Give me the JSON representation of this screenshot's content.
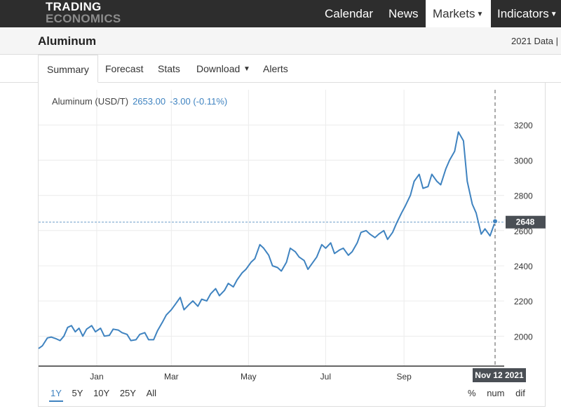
{
  "brand": {
    "line1": "TRADING",
    "line2": "ECONOMICS"
  },
  "nav": {
    "calendar": "Calendar",
    "news": "News",
    "markets": "Markets",
    "indicators": "Indicators"
  },
  "header": {
    "title": "Aluminum",
    "data_link": "2021 Data |"
  },
  "tabs": {
    "summary": "Summary",
    "forecast": "Forecast",
    "stats": "Stats",
    "download": "Download",
    "alerts": "Alerts"
  },
  "quote": {
    "name": "Aluminum (USD/T)",
    "price": "2653.00",
    "change": "-3.00 (-0.11%)"
  },
  "ranges": {
    "r1": "1Y",
    "r2": "5Y",
    "r3": "10Y",
    "r4": "25Y",
    "r5": "All"
  },
  "modes": {
    "pct": "%",
    "num": "num",
    "dif": "dif"
  },
  "colors": {
    "line": "#3f83c0",
    "nav_bg": "#2d2d2d",
    "tooltip_bg": "#4a4f55"
  },
  "chart_data": {
    "type": "line",
    "title": "",
    "series": [
      {
        "name": "Aluminum (USD/T)",
        "points": [
          [
            "2020-11-16",
            1930
          ],
          [
            "2020-11-19",
            1945
          ],
          [
            "2020-11-23",
            1990
          ],
          [
            "2020-11-26",
            1995
          ],
          [
            "2020-11-30",
            1985
          ],
          [
            "2020-12-03",
            1975
          ],
          [
            "2020-12-06",
            2000
          ],
          [
            "2020-12-09",
            2050
          ],
          [
            "2020-12-12",
            2060
          ],
          [
            "2020-12-15",
            2025
          ],
          [
            "2020-12-18",
            2045
          ],
          [
            "2020-12-21",
            2000
          ],
          [
            "2020-12-24",
            2040
          ],
          [
            "2020-12-28",
            2060
          ],
          [
            "2020-12-31",
            2025
          ],
          [
            "2021-01-04",
            2045
          ],
          [
            "2021-01-07",
            2000
          ],
          [
            "2021-01-11",
            2005
          ],
          [
            "2021-01-14",
            2040
          ],
          [
            "2021-01-18",
            2035
          ],
          [
            "2021-01-21",
            2020
          ],
          [
            "2021-01-25",
            2010
          ],
          [
            "2021-01-28",
            1975
          ],
          [
            "2021-02-01",
            1980
          ],
          [
            "2021-02-04",
            2010
          ],
          [
            "2021-02-08",
            2020
          ],
          [
            "2021-02-11",
            1980
          ],
          [
            "2021-02-15",
            1980
          ],
          [
            "2021-02-18",
            2030
          ],
          [
            "2021-02-22",
            2080
          ],
          [
            "2021-02-25",
            2120
          ],
          [
            "2021-03-01",
            2150
          ],
          [
            "2021-03-04",
            2180
          ],
          [
            "2021-03-08",
            2220
          ],
          [
            "2021-03-11",
            2150
          ],
          [
            "2021-03-15",
            2180
          ],
          [
            "2021-03-18",
            2200
          ],
          [
            "2021-03-22",
            2170
          ],
          [
            "2021-03-25",
            2210
          ],
          [
            "2021-03-29",
            2200
          ],
          [
            "2021-04-01",
            2240
          ],
          [
            "2021-04-05",
            2270
          ],
          [
            "2021-04-08",
            2230
          ],
          [
            "2021-04-12",
            2260
          ],
          [
            "2021-04-15",
            2300
          ],
          [
            "2021-04-19",
            2280
          ],
          [
            "2021-04-22",
            2320
          ],
          [
            "2021-04-26",
            2360
          ],
          [
            "2021-04-29",
            2380
          ],
          [
            "2021-05-03",
            2420
          ],
          [
            "2021-05-06",
            2440
          ],
          [
            "2021-05-10",
            2520
          ],
          [
            "2021-05-13",
            2500
          ],
          [
            "2021-05-17",
            2460
          ],
          [
            "2021-05-20",
            2400
          ],
          [
            "2021-05-24",
            2390
          ],
          [
            "2021-05-27",
            2370
          ],
          [
            "2021-05-31",
            2420
          ],
          [
            "2021-06-03",
            2500
          ],
          [
            "2021-06-07",
            2480
          ],
          [
            "2021-06-10",
            2450
          ],
          [
            "2021-06-14",
            2430
          ],
          [
            "2021-06-17",
            2380
          ],
          [
            "2021-06-21",
            2420
          ],
          [
            "2021-06-24",
            2450
          ],
          [
            "2021-06-28",
            2520
          ],
          [
            "2021-07-01",
            2500
          ],
          [
            "2021-07-05",
            2530
          ],
          [
            "2021-07-08",
            2470
          ],
          [
            "2021-07-12",
            2490
          ],
          [
            "2021-07-15",
            2500
          ],
          [
            "2021-07-19",
            2460
          ],
          [
            "2021-07-22",
            2480
          ],
          [
            "2021-07-26",
            2530
          ],
          [
            "2021-07-29",
            2590
          ],
          [
            "2021-08-02",
            2600
          ],
          [
            "2021-08-05",
            2580
          ],
          [
            "2021-08-09",
            2560
          ],
          [
            "2021-08-12",
            2580
          ],
          [
            "2021-08-16",
            2600
          ],
          [
            "2021-08-19",
            2550
          ],
          [
            "2021-08-23",
            2590
          ],
          [
            "2021-08-26",
            2640
          ],
          [
            "2021-08-30",
            2700
          ],
          [
            "2021-09-02",
            2740
          ],
          [
            "2021-09-06",
            2800
          ],
          [
            "2021-09-09",
            2880
          ],
          [
            "2021-09-13",
            2920
          ],
          [
            "2021-09-16",
            2840
          ],
          [
            "2021-09-20",
            2850
          ],
          [
            "2021-09-23",
            2920
          ],
          [
            "2021-09-27",
            2880
          ],
          [
            "2021-09-30",
            2860
          ],
          [
            "2021-10-04",
            2950
          ],
          [
            "2021-10-07",
            3000
          ],
          [
            "2021-10-11",
            3050
          ],
          [
            "2021-10-14",
            3160
          ],
          [
            "2021-10-18",
            3110
          ],
          [
            "2021-10-21",
            2880
          ],
          [
            "2021-10-25",
            2750
          ],
          [
            "2021-10-28",
            2700
          ],
          [
            "2021-11-01",
            2580
          ],
          [
            "2021-11-04",
            2610
          ],
          [
            "2021-11-08",
            2570
          ],
          [
            "2021-11-11",
            2630
          ],
          [
            "2021-11-12",
            2653
          ]
        ]
      }
    ],
    "x_ticks": [
      "Jan",
      "Mar",
      "May",
      "Jul",
      "Sep"
    ],
    "x_tick_dates": [
      "2021-01-01",
      "2021-03-01",
      "2021-05-01",
      "2021-07-01",
      "2021-09-01"
    ],
    "y_ticks": [
      2000,
      2200,
      2400,
      2600,
      2800,
      3000,
      3200
    ],
    "ylim": [
      1830,
      3400
    ],
    "xlim": [
      "2020-11-16",
      "2021-11-12"
    ],
    "reference_line": {
      "value": 2648,
      "label": "2648"
    },
    "crosshair": {
      "date": "2021-11-12",
      "label": "Nov 12 2021"
    },
    "grid": true
  }
}
